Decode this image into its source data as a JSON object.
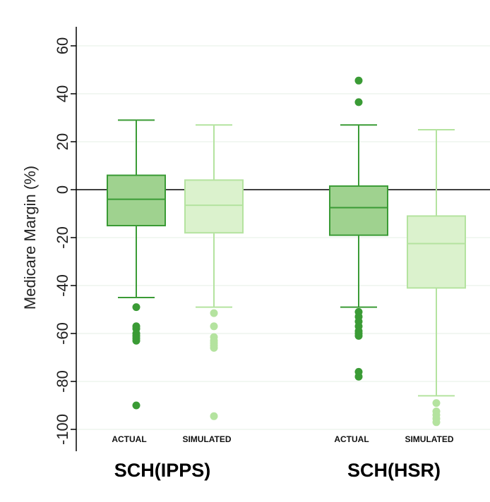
{
  "chart_data": {
    "type": "box",
    "ylabel": "Medicare Margin (%)",
    "xlabel": "",
    "ylim": [
      -105,
      65
    ],
    "yticks": [
      60,
      40,
      20,
      0,
      -20,
      -40,
      -60,
      -80,
      -100
    ],
    "grid": true,
    "reference_line": 0,
    "groups": [
      {
        "label": "SCH(IPPS)",
        "boxes": [
          {
            "label": "ACTUAL",
            "color": "#3a9b35",
            "fill": "#9fd28f",
            "stats": {
              "min": -45,
              "q1": -15,
              "median": -4,
              "q3": 6,
              "max": 29
            },
            "outliers": [
              -49,
              -57,
              -58,
              -60,
              -61,
              -62,
              -63,
              -90
            ]
          },
          {
            "label": "SIMULATED",
            "color": "#b4e39f",
            "fill": "#dbf2cd",
            "stats": {
              "min": -49,
              "q1": -18,
              "median": -6.5,
              "q3": 4,
              "max": 27
            },
            "outliers": [
              -51.5,
              -57,
              -61.5,
              -63,
              -64,
              -65,
              -66,
              -94.5
            ]
          }
        ]
      },
      {
        "label": "SCH(HSR)",
        "boxes": [
          {
            "label": "ACTUAL",
            "color": "#3a9b35",
            "fill": "#9fd28f",
            "stats": {
              "min": -49,
              "q1": -19,
              "median": -7.5,
              "q3": 1.5,
              "max": 27
            },
            "outliers": [
              45.5,
              36.5,
              -51,
              -53,
              -55,
              -57,
              -59,
              -60,
              -61,
              -76,
              -78
            ]
          },
          {
            "label": "SIMULATED",
            "color": "#b4e39f",
            "fill": "#dbf2cd",
            "stats": {
              "min": -86,
              "q1": -41,
              "median": -22.5,
              "q3": -11,
              "max": 25
            },
            "outliers": [
              -89,
              -92.5,
              -94,
              -95.5,
              -97
            ]
          }
        ]
      }
    ]
  }
}
